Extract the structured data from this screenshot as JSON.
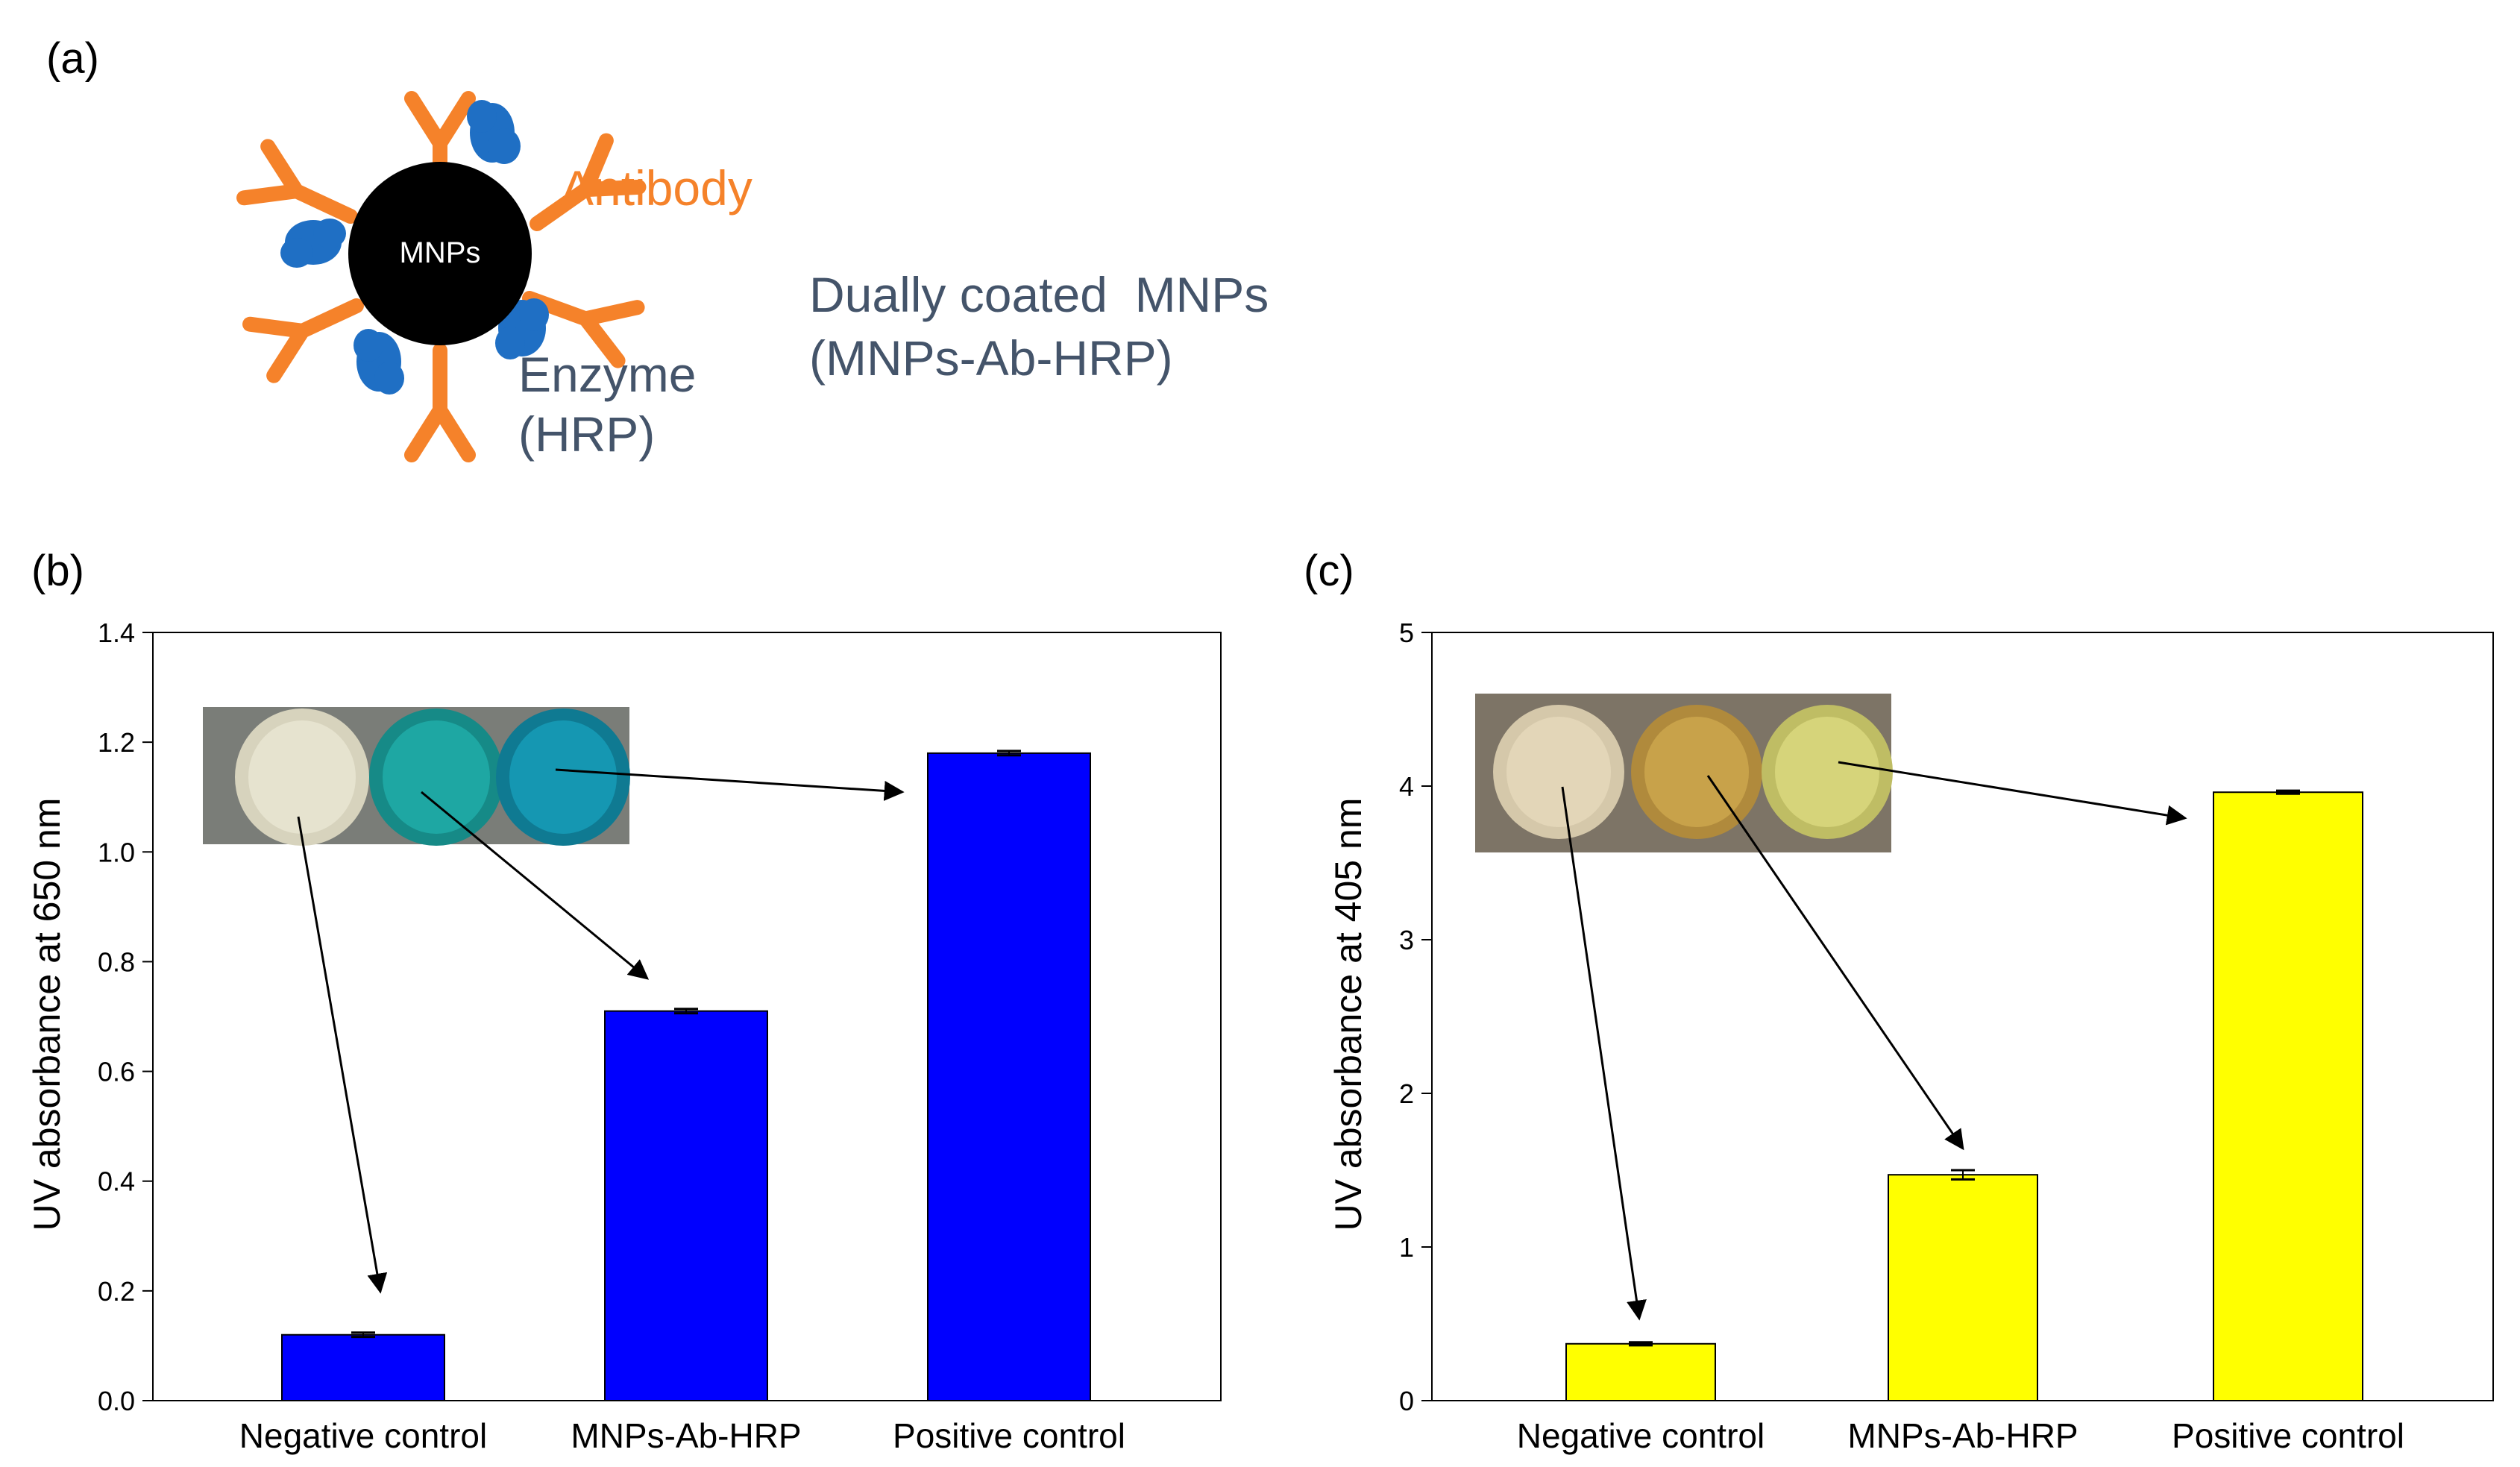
{
  "panel_a": {
    "label": "(a)",
    "core_label": "MNPs",
    "antibody_label": "Antibody",
    "enzyme_label": "Enzyme",
    "enzyme_abbr": "(HRP)",
    "caption_line1": "Dually coated  MNPs",
    "caption_line2": "(MNPs-Ab-HRP)",
    "colors": {
      "antibody": "#f5822a",
      "enzyme": "#1f6fc4",
      "core": "#000000",
      "text": "#44546a"
    }
  },
  "chart_data": [
    {
      "panel": "(b)",
      "type": "bar",
      "title": "",
      "categories": [
        "Negative control",
        "MNPs-Ab-HRP",
        "Positive control"
      ],
      "values": [
        0.12,
        0.71,
        1.18
      ],
      "errors": [
        0.004,
        0.004,
        0.004
      ],
      "ylabel": "UV absorbance at 650 nm",
      "xlabel": "",
      "ylim": [
        0,
        1.4
      ],
      "yticks": [
        "0.0",
        "0.2",
        "0.4",
        "0.6",
        "0.8",
        "1.0",
        "1.2",
        "1.4"
      ],
      "bar_color": "#0000ff",
      "inset": "photo of three wells: clear, blue, blue",
      "well_colors": [
        "#e6e3cf",
        "#1ea7a3",
        "#1597b2"
      ]
    },
    {
      "panel": "(c)",
      "type": "bar",
      "title": "",
      "categories": [
        "Negative control",
        "MNPs-Ab-HRP",
        "Positive control"
      ],
      "values": [
        0.37,
        1.47,
        3.96
      ],
      "errors": [
        0.01,
        0.03,
        0.01
      ],
      "ylabel": "UV absorbance at 405 nm",
      "xlabel": "",
      "ylim": [
        0,
        5
      ],
      "yticks": [
        "0",
        "1",
        "2",
        "3",
        "4",
        "5"
      ],
      "bar_color": "#ffff00",
      "inset": "photo of three wells: clear, amber, yellow",
      "well_colors": [
        "#e3d6b8",
        "#c8a24a",
        "#d6d47a"
      ]
    }
  ]
}
